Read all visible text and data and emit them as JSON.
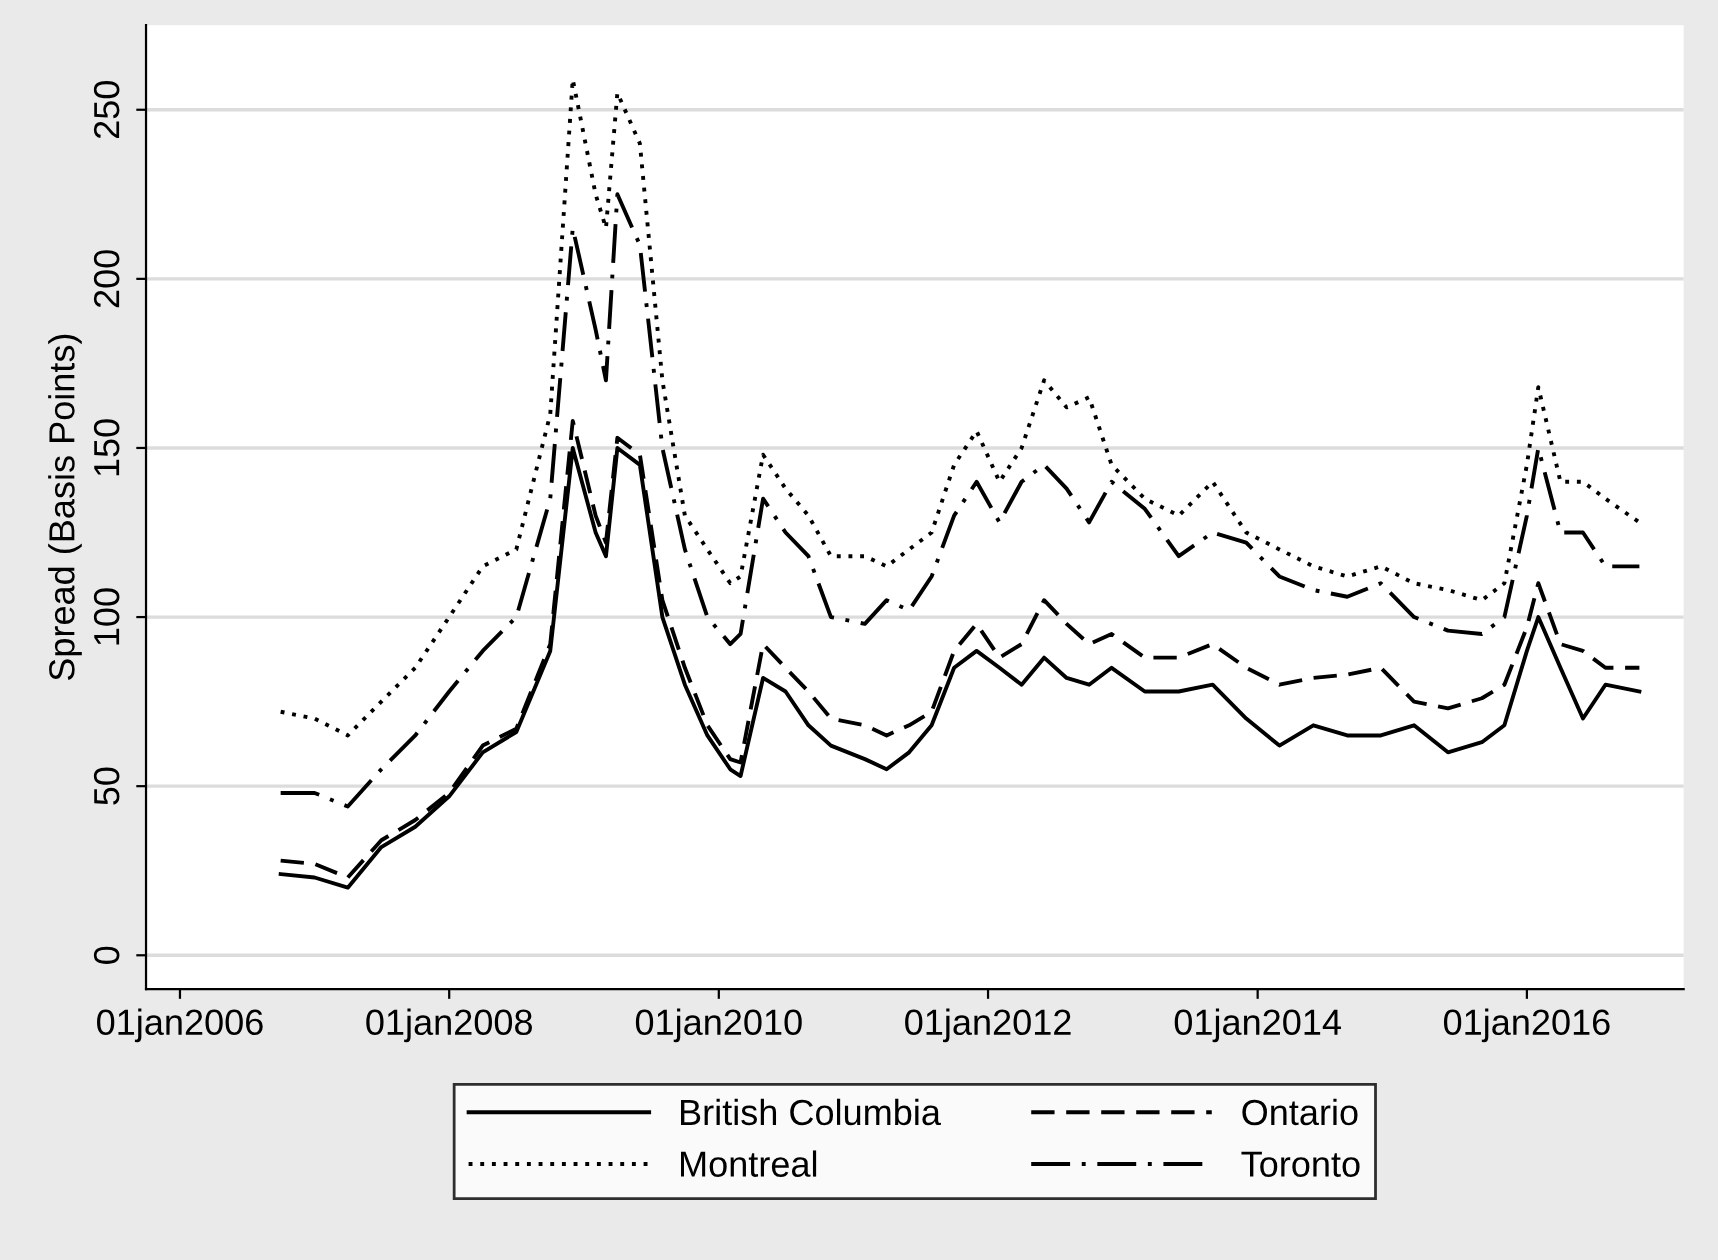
{
  "chart_data": {
    "type": "line",
    "ylabel": "Spread (Basis Points)",
    "x": [
      "2006-10",
      "2007-01",
      "2007-04",
      "2007-07",
      "2007-10",
      "2008-01",
      "2008-04",
      "2008-07",
      "2008-10",
      "2008-12",
      "2009-02",
      "2009-03",
      "2009-04",
      "2009-06",
      "2009-08",
      "2009-10",
      "2009-12",
      "2010-02",
      "2010-03",
      "2010-05",
      "2010-07",
      "2010-09",
      "2010-11",
      "2011-02",
      "2011-04",
      "2011-06",
      "2011-08",
      "2011-10",
      "2011-12",
      "2012-02",
      "2012-04",
      "2012-06",
      "2012-08",
      "2012-10",
      "2012-12",
      "2013-03",
      "2013-06",
      "2013-09",
      "2013-12",
      "2014-03",
      "2014-06",
      "2014-09",
      "2014-12",
      "2015-03",
      "2015-06",
      "2015-09",
      "2015-11",
      "2016-01",
      "2016-02",
      "2016-04",
      "2016-06",
      "2016-08",
      "2016-11"
    ],
    "series": [
      {
        "name": "British Columbia",
        "color": "#000000",
        "line_style": "solid",
        "values": [
          24,
          23,
          20,
          32,
          38,
          47,
          60,
          66,
          90,
          150,
          125,
          118,
          150,
          145,
          100,
          80,
          65,
          55,
          53,
          82,
          78,
          68,
          62,
          58,
          55,
          60,
          68,
          85,
          90,
          85,
          80,
          88,
          82,
          80,
          85,
          78,
          78,
          80,
          70,
          62,
          68,
          65,
          65,
          68,
          60,
          63,
          68,
          90,
          100,
          85,
          70,
          80,
          78
        ]
      },
      {
        "name": "Montreal",
        "color": "#000000",
        "line_style": "dotted",
        "values": [
          72,
          70,
          65,
          75,
          85,
          100,
          115,
          120,
          160,
          259,
          225,
          215,
          255,
          240,
          170,
          130,
          120,
          110,
          112,
          148,
          138,
          130,
          118,
          118,
          115,
          120,
          125,
          145,
          155,
          140,
          150,
          170,
          162,
          165,
          145,
          135,
          130,
          140,
          125,
          120,
          115,
          112,
          115,
          110,
          108,
          105,
          110,
          145,
          168,
          140,
          140,
          135,
          128
        ]
      },
      {
        "name": "Ontario",
        "color": "#000000",
        "line_style": "dashed",
        "values": [
          28,
          27,
          23,
          34,
          40,
          48,
          62,
          67,
          92,
          158,
          130,
          122,
          153,
          148,
          105,
          85,
          68,
          58,
          57,
          92,
          85,
          78,
          70,
          68,
          65,
          68,
          72,
          90,
          98,
          88,
          92,
          105,
          98,
          92,
          95,
          88,
          88,
          92,
          85,
          80,
          82,
          83,
          85,
          75,
          73,
          76,
          80,
          97,
          110,
          92,
          90,
          85,
          85
        ]
      },
      {
        "name": "Toronto",
        "color": "#000000",
        "line_style": "dashdot",
        "values": [
          48,
          48,
          44,
          55,
          65,
          78,
          90,
          100,
          135,
          215,
          185,
          170,
          225,
          210,
          150,
          120,
          100,
          92,
          95,
          135,
          125,
          118,
          100,
          98,
          105,
          102,
          112,
          130,
          140,
          128,
          140,
          145,
          138,
          128,
          140,
          132,
          118,
          125,
          122,
          112,
          108,
          106,
          110,
          100,
          96,
          95,
          100,
          130,
          150,
          125,
          125,
          115,
          115
        ]
      }
    ],
    "xlim": [
      "2005-10-01",
      "2017-03-01"
    ],
    "xticks": [
      {
        "value": "2006-01-01",
        "label": "01jan2006"
      },
      {
        "value": "2008-01-01",
        "label": "01jan2008"
      },
      {
        "value": "2010-01-01",
        "label": "01jan2010"
      },
      {
        "value": "2012-01-01",
        "label": "01jan2012"
      },
      {
        "value": "2014-01-01",
        "label": "01jan2014"
      },
      {
        "value": "2016-01-01",
        "label": "01jan2016"
      }
    ],
    "ylim": [
      -10,
      275
    ],
    "yticks": [
      0,
      50,
      100,
      150,
      200,
      250
    ],
    "grid": "y",
    "legend": "bottom",
    "marker": "none"
  }
}
